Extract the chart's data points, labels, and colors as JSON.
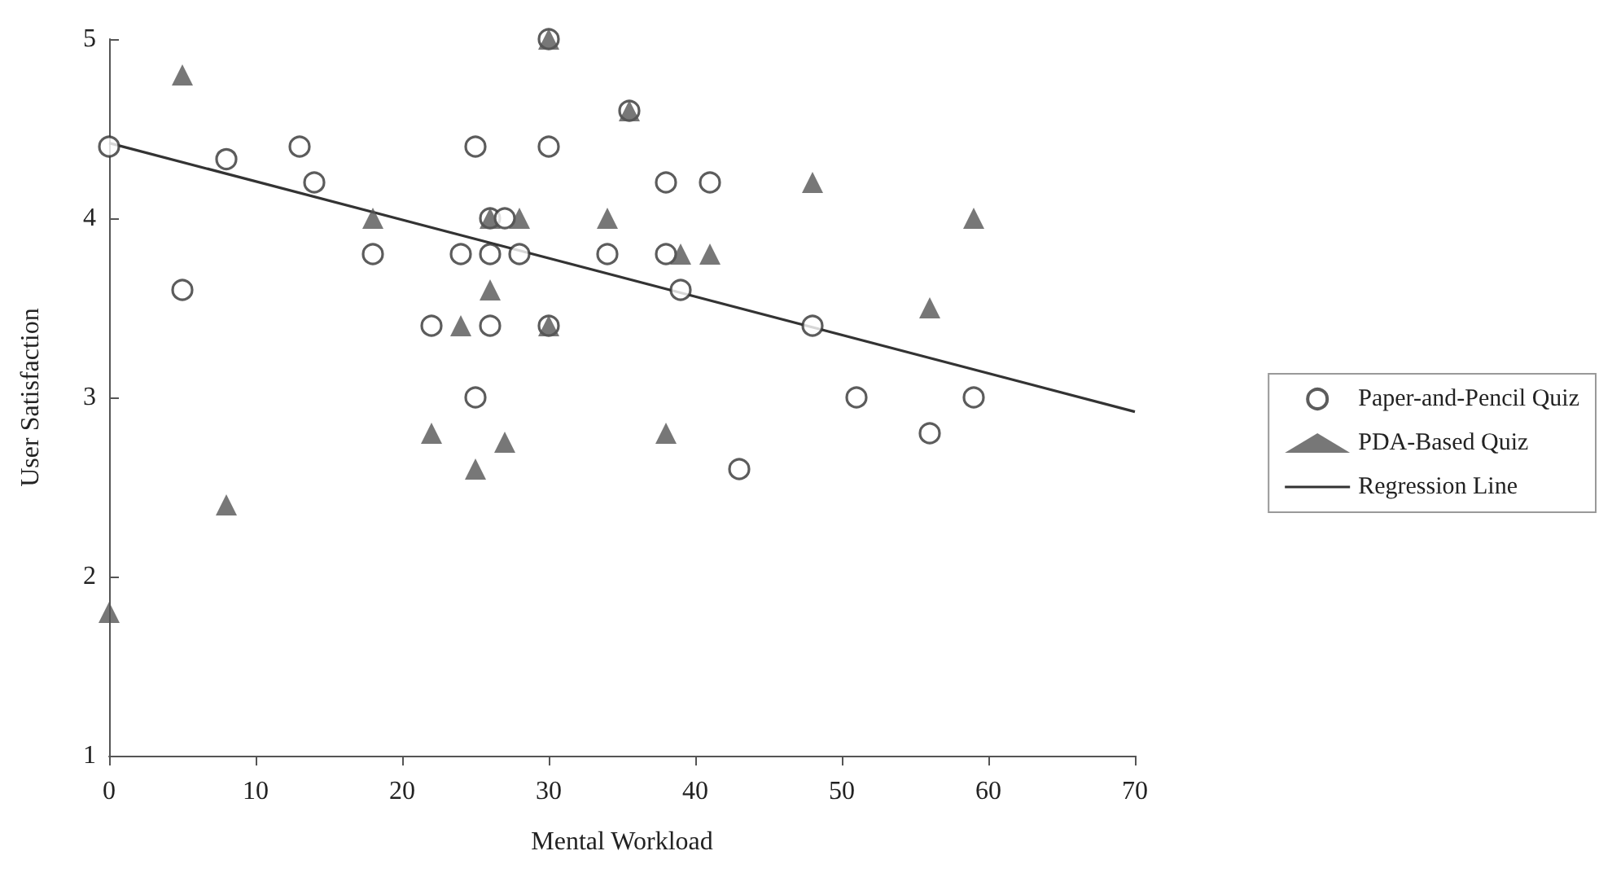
{
  "chart_data": {
    "type": "scatter",
    "xlabel": "Mental Workload",
    "ylabel": "User Satisfaction",
    "xlim": [
      0,
      70
    ],
    "xticks": [
      0,
      10,
      20,
      30,
      40,
      50,
      60,
      70
    ],
    "ylim": [
      1,
      5
    ],
    "yticks": [
      1,
      2,
      3,
      4,
      5
    ],
    "grid": false,
    "legend": "right",
    "series": [
      {
        "name": "Paper-and-Pencil Quiz",
        "marker": "circle",
        "color": "#333333",
        "x": [
          0,
          5,
          8,
          13,
          14,
          18,
          22,
          24,
          25,
          25,
          26,
          26,
          26,
          27,
          28,
          30,
          30,
          30,
          34,
          35.5,
          38,
          38,
          39,
          41,
          43,
          48,
          51,
          56,
          59
        ],
        "values": [
          4.4,
          3.6,
          4.33,
          4.4,
          4.2,
          3.8,
          3.4,
          3.8,
          4.4,
          3.0,
          4.0,
          3.8,
          3.4,
          4.0,
          3.8,
          5.0,
          4.4,
          3.4,
          3.8,
          4.6,
          4.2,
          3.8,
          3.6,
          4.2,
          2.6,
          3.4,
          3.0,
          2.8,
          3.0
        ]
      },
      {
        "name": "PDA-Based Quiz",
        "marker": "triangle",
        "color": "#555555",
        "x": [
          0,
          5,
          8,
          18,
          22,
          24,
          25,
          26,
          26,
          27,
          28,
          30,
          30,
          34,
          35.5,
          38,
          39,
          41,
          48,
          56,
          59
        ],
        "values": [
          1.8,
          4.8,
          2.4,
          4.0,
          2.8,
          3.4,
          2.6,
          4.0,
          3.6,
          2.75,
          4.0,
          5.0,
          3.4,
          4.0,
          4.6,
          2.8,
          3.8,
          3.8,
          4.2,
          3.5,
          4.0
        ]
      },
      {
        "name": "Regression Line",
        "type": "line",
        "marker": "none",
        "line_style": "solid",
        "color": "#333333",
        "x": [
          0,
          70
        ],
        "values": [
          4.42,
          2.92
        ]
      }
    ]
  }
}
